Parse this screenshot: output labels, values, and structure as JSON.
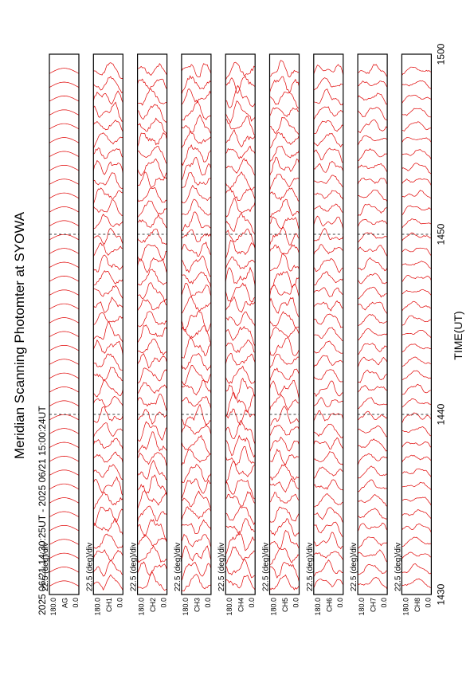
{
  "page": {
    "title": "Meridian Scanning Photomter at SYOWA",
    "time_range": "2025 06/21 14:30:25UT - 2025 06/21 15:00:24UT",
    "x_axis_label": "TIME(UT)"
  },
  "chart_data": {
    "type": "line",
    "title": "Meridian Scanning Photomter at SYOWA",
    "subtitle": "2025 06/21 14:30:25UT - 2025 06/21 15:00:24UT",
    "xlabel": "TIME(UT)",
    "xlim": [
      "1430",
      "1500"
    ],
    "x_ticks": [
      "1430",
      "1440",
      "1450",
      "1500"
    ],
    "scale_label": "22.5 (deg)/div",
    "y_ticks": [
      "180.0",
      "0.0"
    ],
    "trace_color": "#e00000",
    "traces_per_panel": 38,
    "panels": [
      {
        "channel": "AG",
        "activity": 0.0
      },
      {
        "channel": "CH1",
        "activity": 0.75
      },
      {
        "channel": "CH2",
        "activity": 0.8
      },
      {
        "channel": "CH3",
        "activity": 0.85
      },
      {
        "channel": "CH4",
        "activity": 0.9
      },
      {
        "channel": "CH5",
        "activity": 0.8
      },
      {
        "channel": "CH6",
        "activity": 0.6
      },
      {
        "channel": "CH7",
        "activity": 0.45
      },
      {
        "channel": "CH8",
        "activity": 0.3
      }
    ]
  }
}
